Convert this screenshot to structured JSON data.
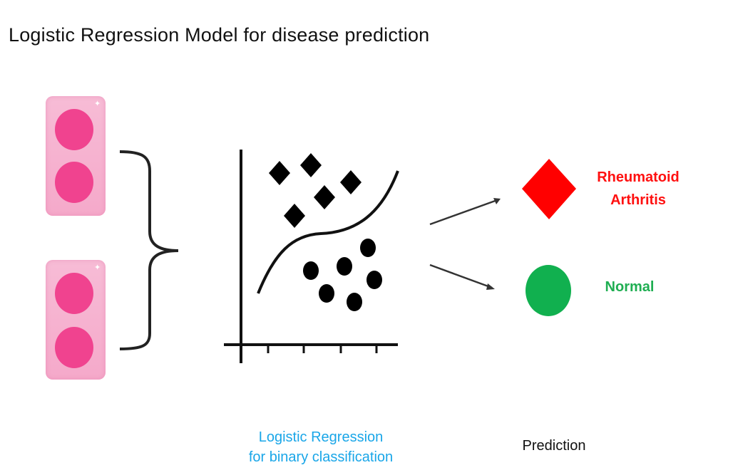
{
  "title": "Logistic Regression Model for disease prediction",
  "samples": [
    {
      "name": "sample-top"
    },
    {
      "name": "sample-bottom"
    }
  ],
  "model_label_line1": "Logistic Regression",
  "model_label_line2": "for binary classification",
  "prediction_label": "Prediction",
  "outcomes": {
    "positive_line1": "Rheumatoid",
    "positive_line2": "Arthritis",
    "negative": "Normal"
  },
  "colors": {
    "sample_bg": "#f7bcd6",
    "sample_dot": "#f0438f",
    "model_label": "#19a6e8",
    "positive": "#ff1010",
    "negative": "#1fae52",
    "marks": "#000000"
  },
  "icons": {
    "positive_shape": "red-diamond-icon",
    "negative_shape": "green-circle-icon",
    "class_a_marker": "diamond-icon",
    "class_b_marker": "circle-icon"
  }
}
